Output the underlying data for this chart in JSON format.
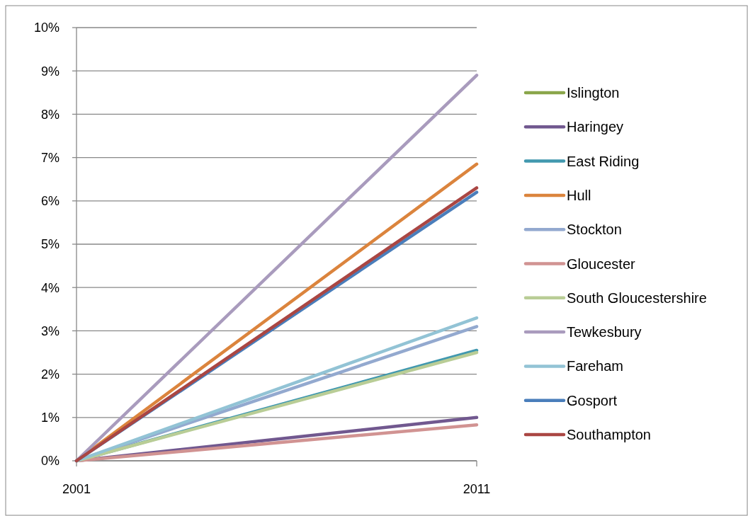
{
  "chart_data": {
    "type": "line",
    "x": [
      2001,
      2011
    ],
    "xlim": [
      2001,
      2011
    ],
    "xticks": [
      2001,
      2011
    ],
    "ylim": [
      0,
      10
    ],
    "yticks": [
      {
        "value": 0,
        "label": "0%"
      },
      {
        "value": 1,
        "label": "1%"
      },
      {
        "value": 2,
        "label": "2%"
      },
      {
        "value": 3,
        "label": "3%"
      },
      {
        "value": 4,
        "label": "4%"
      },
      {
        "value": 5,
        "label": "5%"
      },
      {
        "value": 6,
        "label": "6%"
      },
      {
        "value": 7,
        "label": "7%"
      },
      {
        "value": 8,
        "label": "8%"
      },
      {
        "value": 9,
        "label": "9%"
      },
      {
        "value": 10,
        "label": "10%"
      }
    ],
    "grid": "y",
    "legend": "right",
    "marker": "none",
    "line_style": "solid",
    "series": [
      {
        "name": "Islington",
        "color": "#8aa64a",
        "values": [
          null,
          null
        ]
      },
      {
        "name": "Haringey",
        "color": "#71588f",
        "values": [
          0,
          1.0
        ]
      },
      {
        "name": "East Riding",
        "color": "#4198af",
        "values": [
          0,
          2.55
        ]
      },
      {
        "name": "Hull",
        "color": "#db843d",
        "values": [
          0,
          6.85
        ]
      },
      {
        "name": "Stockton",
        "color": "#93a9cf",
        "values": [
          0,
          3.1
        ]
      },
      {
        "name": "Gloucester",
        "color": "#d19392",
        "values": [
          0,
          0.83
        ]
      },
      {
        "name": "South Gloucestershire",
        "color": "#b9cd96",
        "values": [
          0,
          2.5
        ]
      },
      {
        "name": "Tewkesbury",
        "color": "#a99bbd",
        "values": [
          0,
          8.9
        ]
      },
      {
        "name": "Fareham",
        "color": "#92c3d5",
        "values": [
          0,
          3.3
        ]
      },
      {
        "name": "Gosport",
        "color": "#4a7ebb",
        "values": [
          0,
          6.2
        ]
      },
      {
        "name": "Southampton",
        "color": "#aa4643",
        "values": [
          0,
          6.3
        ]
      }
    ]
  }
}
